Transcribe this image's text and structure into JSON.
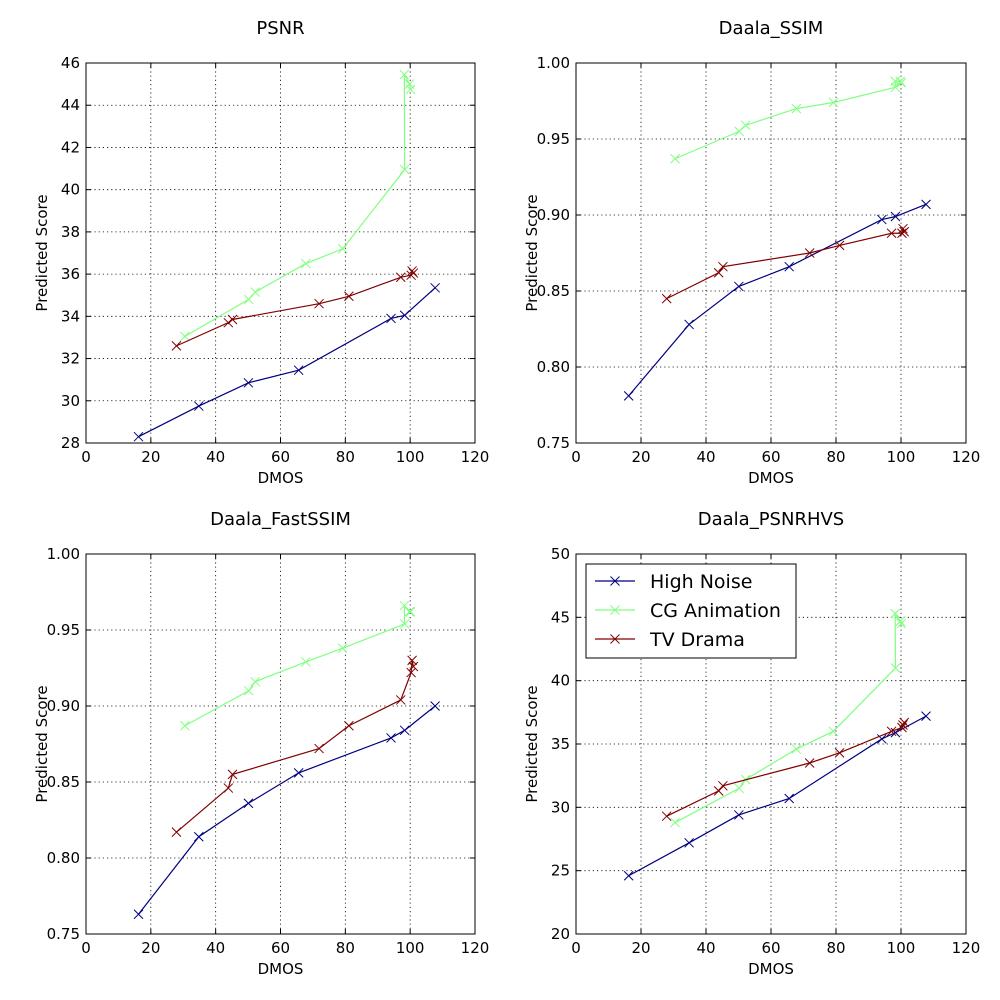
{
  "figure": {
    "background": "#ffffff"
  },
  "chart_data": [
    {
      "type": "line",
      "title": "PSNR",
      "xlabel": "DMOS",
      "ylabel": "Predicted Score",
      "xlim": [
        0,
        120
      ],
      "ylim": [
        28,
        46
      ],
      "xticks": [
        0,
        20,
        40,
        60,
        80,
        100,
        120
      ],
      "yticks": [
        28,
        30,
        32,
        34,
        36,
        38,
        40,
        42,
        44,
        46
      ],
      "yticklabels": [
        "28",
        "30",
        "32",
        "34",
        "36",
        "38",
        "40",
        "42",
        "44",
        "46"
      ],
      "grid": true,
      "legend": null,
      "series": [
        {
          "name": "High Noise",
          "color": "#000080",
          "marker": "x",
          "x": [
            16.2,
            34.8,
            50.1,
            65.6,
            94.1,
            98.3,
            107.7
          ],
          "y": [
            28.3,
            29.75,
            30.85,
            31.45,
            33.9,
            34.05,
            35.35
          ]
        },
        {
          "name": "CG Animation",
          "color": "#80ff80",
          "marker": "x",
          "x": [
            30.5,
            50.2,
            52.2,
            67.8,
            79.2,
            98.3,
            98.2,
            99.8,
            100.1
          ],
          "y": [
            33.05,
            34.8,
            35.15,
            36.5,
            37.2,
            40.95,
            45.45,
            45.0,
            44.75
          ]
        },
        {
          "name": "TV Drama",
          "color": "#800000",
          "marker": "x",
          "x": [
            27.9,
            43.9,
            45.2,
            71.9,
            81.1,
            97.1,
            100.3,
            100.6,
            101.0
          ],
          "y": [
            32.6,
            33.7,
            33.85,
            34.6,
            34.95,
            35.85,
            35.95,
            36.15,
            36.05
          ]
        }
      ]
    },
    {
      "type": "line",
      "title": "Daala_SSIM",
      "xlabel": "DMOS",
      "ylabel": "Predicted Score",
      "xlim": [
        0,
        120
      ],
      "ylim": [
        0.75,
        1.0
      ],
      "xticks": [
        0,
        20,
        40,
        60,
        80,
        100,
        120
      ],
      "yticks": [
        0.75,
        0.8,
        0.85,
        0.9,
        0.95,
        1.0
      ],
      "yticklabels": [
        "0.75",
        "0.80",
        "0.85",
        "0.90",
        "0.95",
        "1.00"
      ],
      "grid": true,
      "legend": null,
      "series": [
        {
          "name": "High Noise",
          "color": "#000080",
          "marker": "x",
          "x": [
            16.2,
            34.8,
            50.1,
            65.6,
            94.1,
            98.3,
            107.7
          ],
          "y": [
            0.781,
            0.828,
            0.853,
            0.866,
            0.897,
            0.899,
            0.907
          ]
        },
        {
          "name": "CG Animation",
          "color": "#80ff80",
          "marker": "x",
          "x": [
            30.5,
            50.2,
            52.2,
            67.8,
            79.2,
            98.3,
            98.2,
            99.8,
            100.1
          ],
          "y": [
            0.937,
            0.955,
            0.959,
            0.97,
            0.974,
            0.984,
            0.988,
            0.988,
            0.987
          ]
        },
        {
          "name": "TV Drama",
          "color": "#800000",
          "marker": "x",
          "x": [
            27.9,
            43.9,
            45.2,
            71.9,
            81.1,
            97.1,
            100.3,
            100.6,
            101.0
          ],
          "y": [
            0.845,
            0.862,
            0.866,
            0.875,
            0.88,
            0.888,
            0.888,
            0.891,
            0.889
          ]
        }
      ]
    },
    {
      "type": "line",
      "title": "Daala_FastSSIM",
      "xlabel": "DMOS",
      "ylabel": "Predicted Score",
      "xlim": [
        0,
        120
      ],
      "ylim": [
        0.75,
        1.0
      ],
      "xticks": [
        0,
        20,
        40,
        60,
        80,
        100,
        120
      ],
      "yticks": [
        0.75,
        0.8,
        0.85,
        0.9,
        0.95,
        1.0
      ],
      "yticklabels": [
        "0.75",
        "0.80",
        "0.85",
        "0.90",
        "0.95",
        "1.00"
      ],
      "grid": true,
      "legend": null,
      "series": [
        {
          "name": "High Noise",
          "color": "#000080",
          "marker": "x",
          "x": [
            16.2,
            34.8,
            50.1,
            65.6,
            94.1,
            98.3,
            107.7
          ],
          "y": [
            0.763,
            0.814,
            0.836,
            0.856,
            0.879,
            0.884,
            0.9
          ]
        },
        {
          "name": "CG Animation",
          "color": "#80ff80",
          "marker": "x",
          "x": [
            30.5,
            50.2,
            52.2,
            67.8,
            79.2,
            98.3,
            98.2,
            99.8,
            100.1
          ],
          "y": [
            0.887,
            0.91,
            0.916,
            0.929,
            0.938,
            0.954,
            0.966,
            0.962,
            0.962
          ]
        },
        {
          "name": "TV Drama",
          "color": "#800000",
          "marker": "x",
          "x": [
            27.9,
            43.9,
            45.2,
            71.9,
            81.1,
            97.1,
            100.3,
            100.6,
            101.0
          ],
          "y": [
            0.817,
            0.846,
            0.855,
            0.872,
            0.887,
            0.904,
            0.922,
            0.93,
            0.926
          ]
        }
      ]
    },
    {
      "type": "line",
      "title": "Daala_PSNRHVS",
      "xlabel": "DMOS",
      "ylabel": "Predicted Score",
      "xlim": [
        0,
        120
      ],
      "ylim": [
        20,
        50
      ],
      "xticks": [
        0,
        20,
        40,
        60,
        80,
        100,
        120
      ],
      "yticks": [
        20,
        25,
        30,
        35,
        40,
        45,
        50
      ],
      "yticklabels": [
        "20",
        "25",
        "30",
        "35",
        "40",
        "45",
        "50"
      ],
      "grid": true,
      "legend": "upper-left",
      "series": [
        {
          "name": "High Noise",
          "color": "#000080",
          "marker": "x",
          "x": [
            16.2,
            34.8,
            50.1,
            65.6,
            94.1,
            98.3,
            107.7
          ],
          "y": [
            24.6,
            27.2,
            29.4,
            30.7,
            35.4,
            35.9,
            37.2
          ]
        },
        {
          "name": "CG Animation",
          "color": "#80ff80",
          "marker": "x",
          "x": [
            30.5,
            50.2,
            52.2,
            67.8,
            79.2,
            98.3,
            98.2,
            99.8,
            100.1
          ],
          "y": [
            28.8,
            31.5,
            32.2,
            34.6,
            36.0,
            41.0,
            45.3,
            44.7,
            44.5
          ]
        },
        {
          "name": "TV Drama",
          "color": "#800000",
          "marker": "x",
          "x": [
            27.9,
            43.9,
            45.2,
            71.9,
            81.1,
            97.1,
            100.3,
            100.6,
            101.0
          ],
          "y": [
            29.3,
            31.3,
            31.7,
            33.5,
            34.3,
            36.0,
            36.3,
            36.5,
            36.7
          ]
        }
      ]
    }
  ]
}
